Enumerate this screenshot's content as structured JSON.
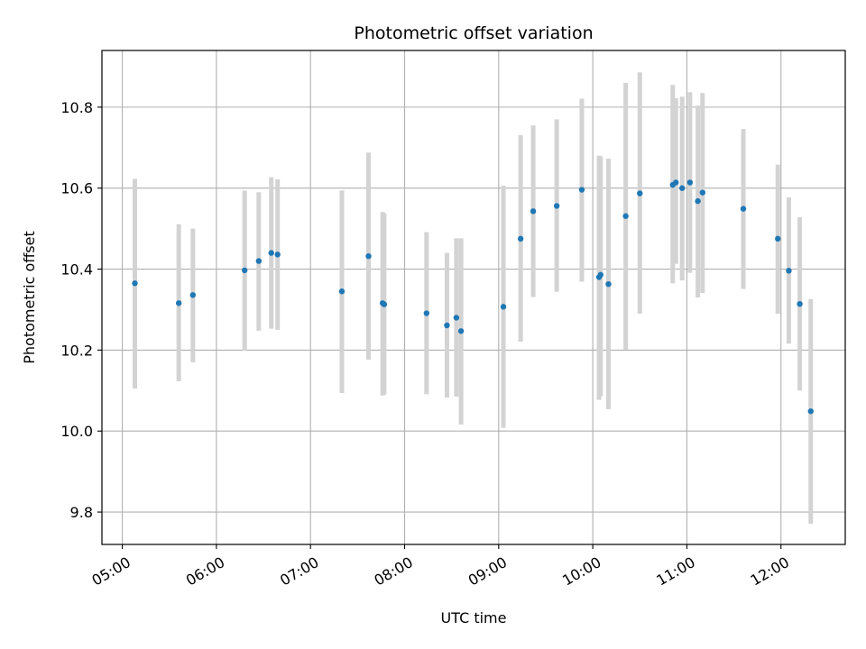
{
  "chart_data": {
    "type": "scatter",
    "title": "Photometric offset variation",
    "xlabel": "UTC time",
    "ylabel": "Photometric offset",
    "x_ticks": [
      "05:00",
      "06:00",
      "07:00",
      "08:00",
      "09:00",
      "10:00",
      "11:00",
      "12:00"
    ],
    "y_ticks": [
      9.8,
      10.0,
      10.2,
      10.4,
      10.6,
      10.8
    ],
    "xlim": [
      "04:47",
      "12:41"
    ],
    "ylim": [
      9.72,
      10.94
    ],
    "grid": true,
    "colors": {
      "point": "#1f77b4",
      "errorbar": "#d3d3d3",
      "grid": "#b0b0b0"
    },
    "points": [
      {
        "t": "05:08",
        "y": 10.365,
        "ylow": 10.105,
        "yhigh": 10.623
      },
      {
        "t": "05:36",
        "y": 10.316,
        "ylow": 10.123,
        "yhigh": 10.511
      },
      {
        "t": "05:45",
        "y": 10.336,
        "ylow": 10.17,
        "yhigh": 10.5
      },
      {
        "t": "06:18",
        "y": 10.397,
        "ylow": 10.199,
        "yhigh": 10.594
      },
      {
        "t": "06:27",
        "y": 10.42,
        "ylow": 10.248,
        "yhigh": 10.59
      },
      {
        "t": "06:35",
        "y": 10.44,
        "ylow": 10.253,
        "yhigh": 10.627
      },
      {
        "t": "06:39",
        "y": 10.436,
        "ylow": 10.25,
        "yhigh": 10.622
      },
      {
        "t": "07:20",
        "y": 10.345,
        "ylow": 10.094,
        "yhigh": 10.594
      },
      {
        "t": "07:37",
        "y": 10.432,
        "ylow": 10.176,
        "yhigh": 10.688
      },
      {
        "t": "07:46",
        "y": 10.316,
        "ylow": 10.088,
        "yhigh": 10.541
      },
      {
        "t": "07:47",
        "y": 10.313,
        "ylow": 10.09,
        "yhigh": 10.538
      },
      {
        "t": "08:14",
        "y": 10.291,
        "ylow": 10.091,
        "yhigh": 10.491
      },
      {
        "t": "08:27",
        "y": 10.261,
        "ylow": 10.083,
        "yhigh": 10.44
      },
      {
        "t": "08:33",
        "y": 10.28,
        "ylow": 10.085,
        "yhigh": 10.476
      },
      {
        "t": "08:36",
        "y": 10.247,
        "ylow": 10.016,
        "yhigh": 10.476
      },
      {
        "t": "09:03",
        "y": 10.307,
        "ylow": 10.008,
        "yhigh": 10.606
      },
      {
        "t": "09:14",
        "y": 10.475,
        "ylow": 10.221,
        "yhigh": 10.731
      },
      {
        "t": "09:22",
        "y": 10.543,
        "ylow": 10.331,
        "yhigh": 10.755
      },
      {
        "t": "09:37",
        "y": 10.556,
        "ylow": 10.344,
        "yhigh": 10.77
      },
      {
        "t": "09:53",
        "y": 10.596,
        "ylow": 10.369,
        "yhigh": 10.821
      },
      {
        "t": "10:04",
        "y": 10.38,
        "ylow": 10.077,
        "yhigh": 10.68
      },
      {
        "t": "10:05",
        "y": 10.386,
        "ylow": 10.086,
        "yhigh": 10.678
      },
      {
        "t": "10:10",
        "y": 10.363,
        "ylow": 10.054,
        "yhigh": 10.673
      },
      {
        "t": "10:21",
        "y": 10.531,
        "ylow": 10.201,
        "yhigh": 10.86
      },
      {
        "t": "10:30",
        "y": 10.587,
        "ylow": 10.29,
        "yhigh": 10.886
      },
      {
        "t": "10:51",
        "y": 10.608,
        "ylow": 10.365,
        "yhigh": 10.855
      },
      {
        "t": "10:53",
        "y": 10.614,
        "ylow": 10.413,
        "yhigh": 10.822
      },
      {
        "t": "10:57",
        "y": 10.6,
        "ylow": 10.372,
        "yhigh": 10.826
      },
      {
        "t": "11:02",
        "y": 10.614,
        "ylow": 10.391,
        "yhigh": 10.837
      },
      {
        "t": "11:07",
        "y": 10.568,
        "ylow": 10.33,
        "yhigh": 10.804
      },
      {
        "t": "11:10",
        "y": 10.589,
        "ylow": 10.341,
        "yhigh": 10.835
      },
      {
        "t": "11:36",
        "y": 10.549,
        "ylow": 10.351,
        "yhigh": 10.746
      },
      {
        "t": "11:58",
        "y": 10.475,
        "ylow": 10.29,
        "yhigh": 10.658
      },
      {
        "t": "12:05",
        "y": 10.396,
        "ylow": 10.216,
        "yhigh": 10.577
      },
      {
        "t": "12:12",
        "y": 10.314,
        "ylow": 10.1,
        "yhigh": 10.528
      },
      {
        "t": "12:19",
        "y": 10.049,
        "ylow": 9.771,
        "yhigh": 10.326
      }
    ]
  }
}
